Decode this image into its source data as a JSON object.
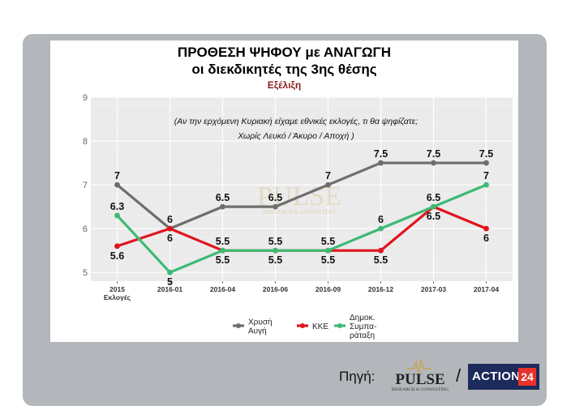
{
  "title_line1": "ΠΡΟΘΕΣΗ ΨΗΦΟΥ με ΑΝΑΓΩΓΗ",
  "title_line2": "οι διεκδικητές της 3ης θέσης",
  "subtitle": "Εξέλιξη",
  "source_label": "Πηγή:",
  "slash": "/",
  "watermark": "PULSE",
  "watermark_sub": "RESEARCH & CONSULTING",
  "pulse_logo_text": "PULSE",
  "pulse_logo_sub": "RESEARCH & CONSULTING",
  "action24_text": "ACTION",
  "action24_num": "24",
  "colors": {
    "frame": "#b3b6bb",
    "plot_bg": "#ebebeb",
    "subtitle": "#8b1a1a",
    "pulse_gold": "#c9a24a"
  },
  "chart_data": {
    "type": "line",
    "categories": [
      "2015\nΕκλογές",
      "2016-01",
      "2016-04",
      "2016-06",
      "2016-09",
      "2016-12",
      "2017-03",
      "2017-04"
    ],
    "ylim": [
      4.8,
      9
    ],
    "yticks": [
      5,
      6,
      7,
      8,
      9
    ],
    "annotation": [
      "(Αν την ερχόμενη Κυριακή είχαμε εθνικές εκλογές, τι θα ψηφίζατε;",
      "Χωρίς Λευκό / Άκυρο / Αποχή )"
    ],
    "grid": true,
    "legend_position": "bottom",
    "series": [
      {
        "name": "Χρυσή Αυγή",
        "legend_lines": [
          "Χρυσή",
          "Αυγή"
        ],
        "color": "#6e6e6e",
        "values": [
          7,
          6,
          6.5,
          6.5,
          7,
          7.5,
          7.5,
          7.5
        ],
        "label_side": [
          "above",
          "above",
          "above",
          "above",
          "above",
          "above",
          "above",
          "above"
        ]
      },
      {
        "name": "ΚΚΕ",
        "legend_lines": [
          "ΚΚΕ"
        ],
        "color": "#e0141e",
        "values": [
          5.6,
          6,
          5.5,
          5.5,
          5.5,
          5.5,
          6.5,
          6
        ],
        "label_side": [
          "below",
          "below",
          "above",
          "above",
          "above",
          "below",
          "below",
          "below"
        ]
      },
      {
        "name": "Δημοκ. Συμπαράταξη",
        "legend_lines": [
          "Δημοκ.",
          "Συμπα-",
          "ράταξη"
        ],
        "color": "#3dba74",
        "values": [
          6.3,
          5,
          5.5,
          5.5,
          5.5,
          6,
          6.5,
          7
        ],
        "label_side": [
          "above",
          "below",
          "below",
          "below",
          "below",
          "above",
          "above",
          "above"
        ]
      }
    ]
  }
}
